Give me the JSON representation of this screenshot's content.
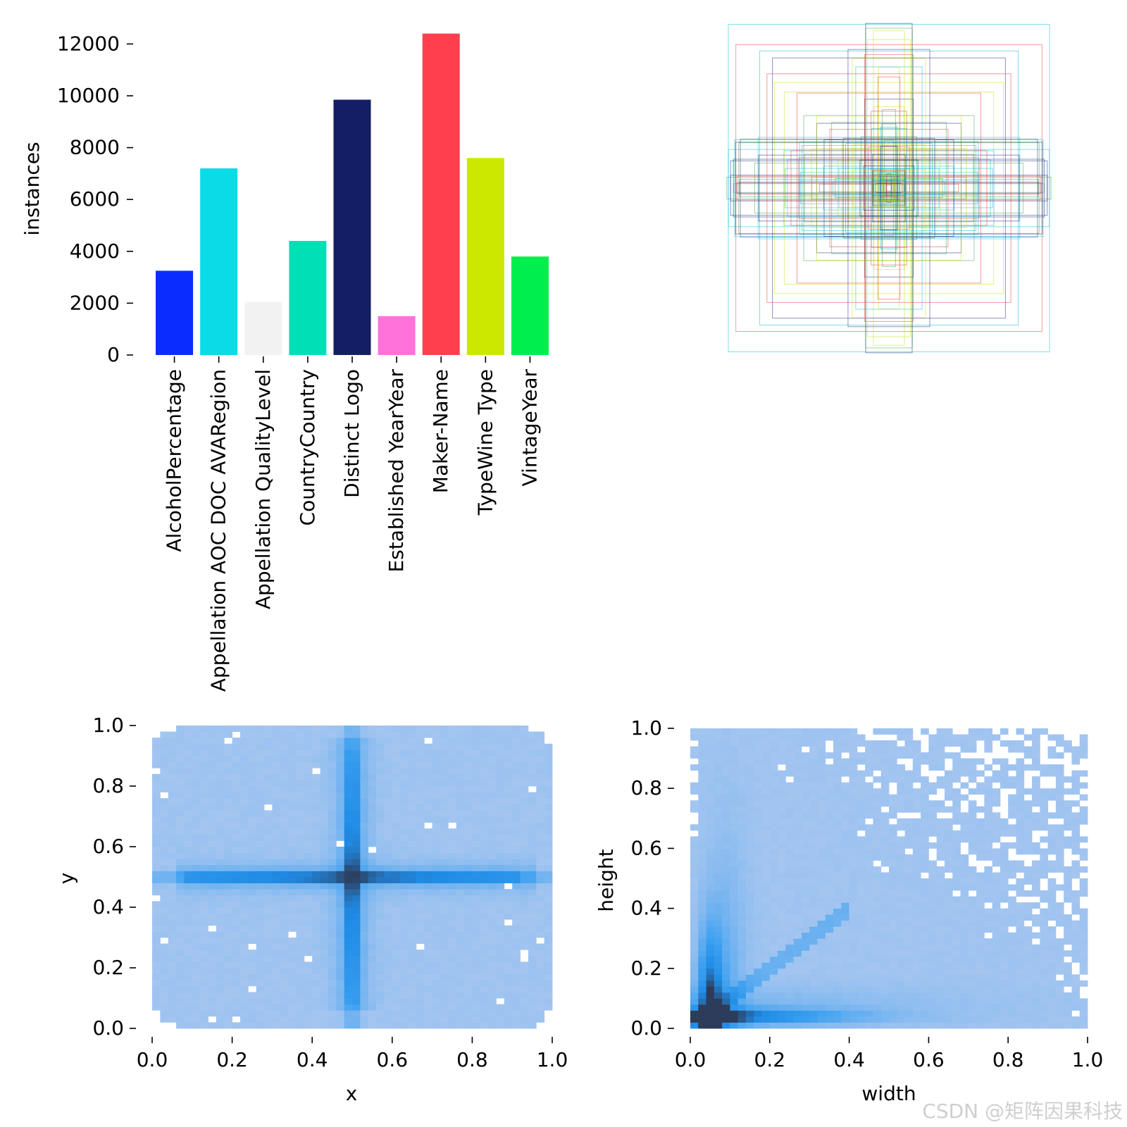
{
  "chart_data": [
    {
      "type": "bar",
      "ylabel": "instances",
      "ylim": [
        0,
        12500
      ],
      "yticks": [
        "0",
        "2000",
        "4000",
        "6000",
        "8000",
        "10000",
        "12000"
      ],
      "categories": [
        "AlcoholPercentage",
        "Appellation AOC DOC AVARegion",
        "Appellation QualityLevel",
        "CountryCountry",
        "Distinct Logo",
        "Established YearYear",
        "Maker-Name",
        "TypeWine Type",
        "VintageYear"
      ],
      "values": [
        3250,
        7200,
        2050,
        4400,
        9850,
        1500,
        12400,
        7600,
        3800
      ],
      "colors": [
        "#0a2cff",
        "#0adbe7",
        "#f2f2f2",
        "#00dfb6",
        "#141e64",
        "#ff72da",
        "#ff3f4e",
        "#cbe900",
        "#00ef4d"
      ]
    },
    {
      "type": "boxes",
      "description_colors": [
        "#1a237e",
        "#e53935",
        "#c6e000",
        "#00bcd4",
        "#43a047"
      ]
    },
    {
      "type": "heatmap",
      "xlabel": "x",
      "ylabel": "y",
      "xlim": [
        0,
        1
      ],
      "ylim": [
        0,
        1
      ],
      "xticks": [
        "0.0",
        "0.2",
        "0.4",
        "0.6",
        "0.8",
        "1.0"
      ],
      "yticks": [
        "0.0",
        "0.2",
        "0.4",
        "0.6",
        "0.8",
        "1.0"
      ]
    },
    {
      "type": "heatmap",
      "xlabel": "width",
      "ylabel": "height",
      "xlim": [
        0,
        1
      ],
      "ylim": [
        0,
        1
      ],
      "xticks": [
        "0.0",
        "0.2",
        "0.4",
        "0.6",
        "0.8",
        "1.0"
      ],
      "yticks": [
        "0.0",
        "0.2",
        "0.4",
        "0.6",
        "0.8",
        "1.0"
      ]
    }
  ],
  "watermark": "CSDN @矩阵因果科技"
}
